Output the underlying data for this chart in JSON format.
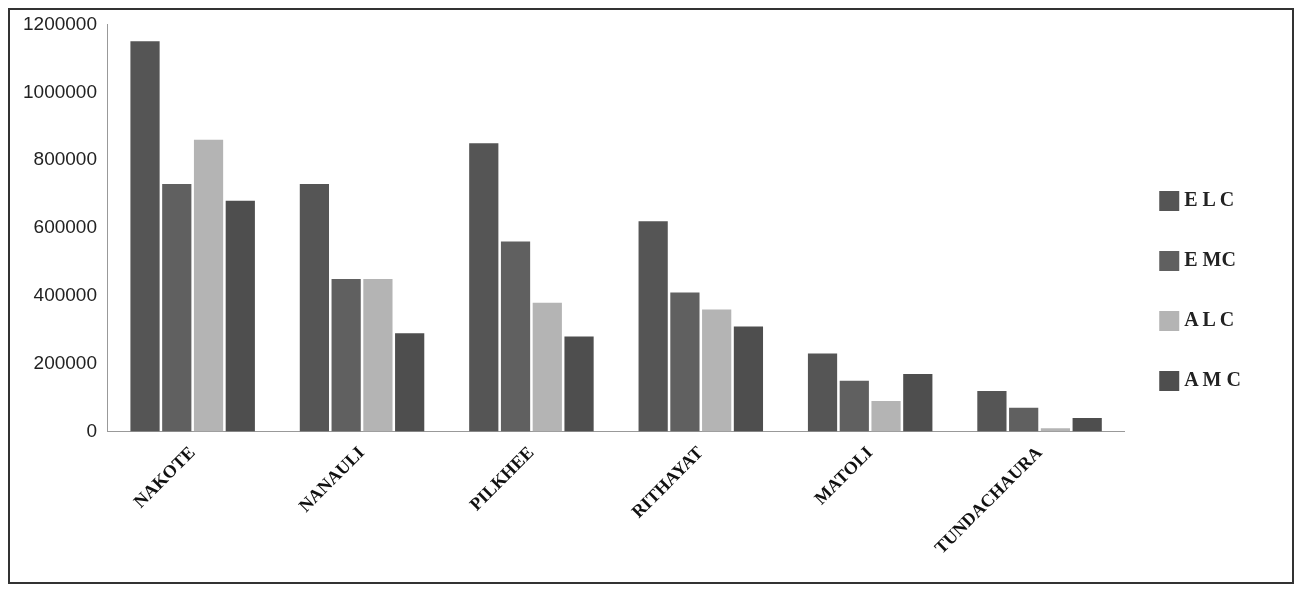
{
  "chart_data": {
    "type": "bar",
    "categories": [
      "NAKOTE",
      "NANAULI",
      "PILKHEE",
      "RITHAYAT",
      "MATOLI",
      "TUNDACHAURA"
    ],
    "series": [
      {
        "name": "E L C",
        "color": "#555555",
        "values": [
          1150000,
          730000,
          850000,
          620000,
          230000,
          120000
        ]
      },
      {
        "name": "E MC",
        "color": "#606060",
        "values": [
          730000,
          450000,
          560000,
          410000,
          150000,
          70000
        ]
      },
      {
        "name": "A L C",
        "color": "#b4b4b4",
        "values": [
          860000,
          450000,
          380000,
          360000,
          90000,
          10000
        ]
      },
      {
        "name": "A M C",
        "color": "#4e4e4e",
        "values": [
          680000,
          290000,
          280000,
          310000,
          170000,
          40000
        ]
      }
    ],
    "ylim": [
      0,
      1200000
    ],
    "yticks": [
      0,
      200000,
      400000,
      600000,
      800000,
      1000000,
      1200000
    ],
    "grid": false,
    "legend": "right"
  }
}
